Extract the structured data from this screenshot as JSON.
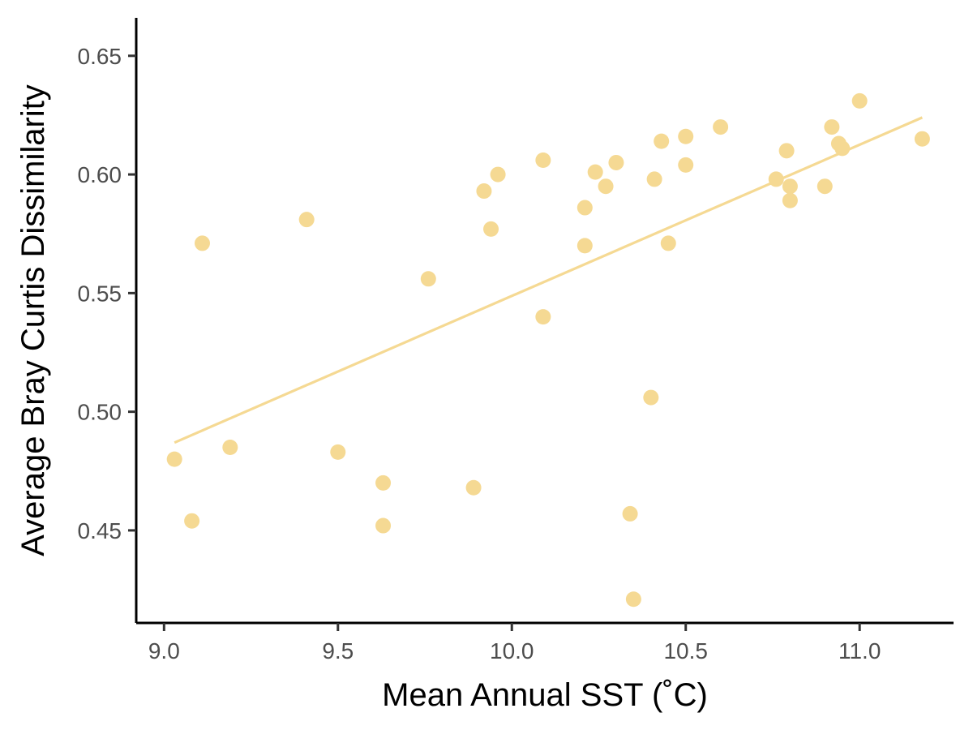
{
  "chart_data": {
    "type": "scatter",
    "title": "",
    "xlabel": "Mean Annual SST (˚C)",
    "ylabel": "Average Bray Curtis Dissimilarity",
    "xlim": [
      8.92,
      11.27
    ],
    "ylim": [
      0.411,
      0.666
    ],
    "x_ticks": [
      9.0,
      9.5,
      10.0,
      10.5,
      11.0
    ],
    "x_tick_labels": [
      "9.0",
      "9.5",
      "10.0",
      "10.5",
      "11.0"
    ],
    "y_ticks": [
      0.45,
      0.5,
      0.55,
      0.6,
      0.65
    ],
    "y_tick_labels": [
      "0.45",
      "0.50",
      "0.55",
      "0.60",
      "0.65"
    ],
    "grid": false,
    "legend": "none",
    "point_color": "#F5D993",
    "line_color": "#F5D993",
    "points": [
      {
        "x": 9.03,
        "y": 0.48
      },
      {
        "x": 9.08,
        "y": 0.454
      },
      {
        "x": 9.11,
        "y": 0.571
      },
      {
        "x": 9.19,
        "y": 0.485
      },
      {
        "x": 9.41,
        "y": 0.581
      },
      {
        "x": 9.5,
        "y": 0.483
      },
      {
        "x": 9.63,
        "y": 0.47
      },
      {
        "x": 9.63,
        "y": 0.452
      },
      {
        "x": 9.76,
        "y": 0.556
      },
      {
        "x": 9.89,
        "y": 0.468
      },
      {
        "x": 9.92,
        "y": 0.593
      },
      {
        "x": 9.94,
        "y": 0.577
      },
      {
        "x": 9.96,
        "y": 0.6
      },
      {
        "x": 10.09,
        "y": 0.606
      },
      {
        "x": 10.09,
        "y": 0.54
      },
      {
        "x": 10.21,
        "y": 0.586
      },
      {
        "x": 10.21,
        "y": 0.57
      },
      {
        "x": 10.24,
        "y": 0.601
      },
      {
        "x": 10.27,
        "y": 0.595
      },
      {
        "x": 10.3,
        "y": 0.605
      },
      {
        "x": 10.34,
        "y": 0.457
      },
      {
        "x": 10.35,
        "y": 0.421
      },
      {
        "x": 10.4,
        "y": 0.506
      },
      {
        "x": 10.41,
        "y": 0.598
      },
      {
        "x": 10.43,
        "y": 0.614
      },
      {
        "x": 10.45,
        "y": 0.571
      },
      {
        "x": 10.5,
        "y": 0.616
      },
      {
        "x": 10.5,
        "y": 0.604
      },
      {
        "x": 10.6,
        "y": 0.62
      },
      {
        "x": 10.76,
        "y": 0.598
      },
      {
        "x": 10.79,
        "y": 0.61
      },
      {
        "x": 10.8,
        "y": 0.595
      },
      {
        "x": 10.8,
        "y": 0.589
      },
      {
        "x": 10.9,
        "y": 0.595
      },
      {
        "x": 10.92,
        "y": 0.62
      },
      {
        "x": 10.94,
        "y": 0.613
      },
      {
        "x": 10.95,
        "y": 0.611
      },
      {
        "x": 11.0,
        "y": 0.631
      },
      {
        "x": 11.18,
        "y": 0.615
      }
    ],
    "trend_line": {
      "x": [
        9.03,
        11.18
      ],
      "y": [
        0.487,
        0.624
      ]
    }
  }
}
